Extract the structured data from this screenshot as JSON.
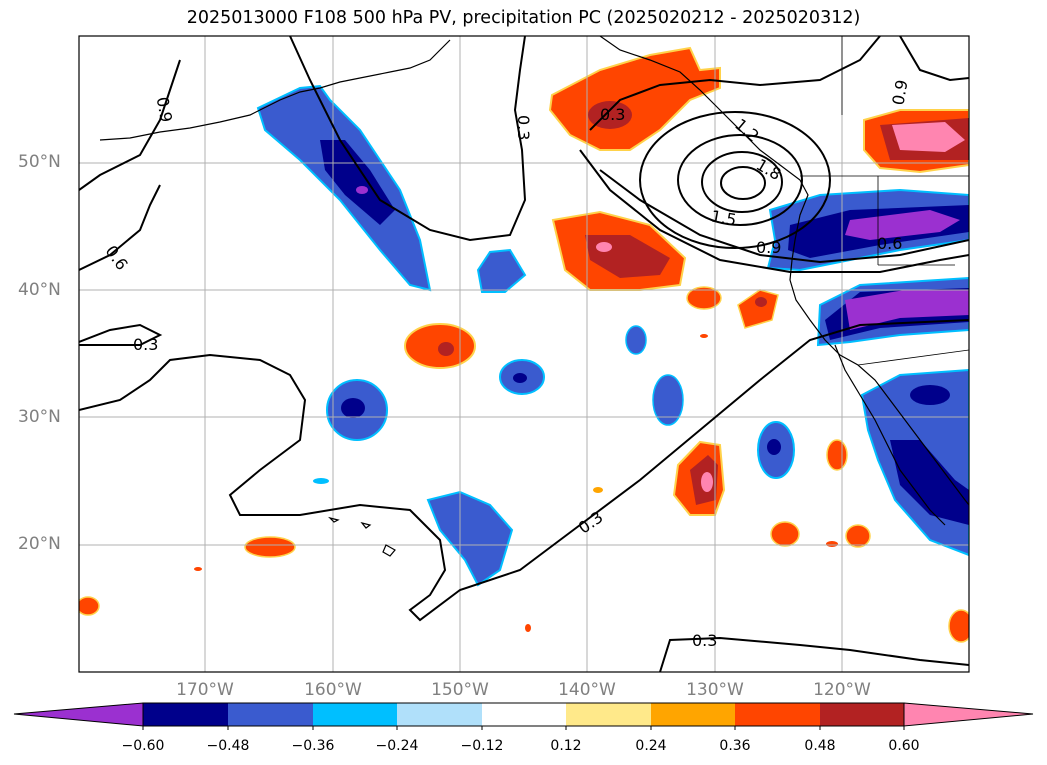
{
  "title": "2025013000 F108 500 hPa PV, precipitation PC (2025020212 - 2025020312)",
  "lat_labels": [
    "50°N",
    "40°N",
    "30°N",
    "20°N"
  ],
  "lon_labels": [
    "170°W",
    "160°W",
    "150°W",
    "140°W",
    "130°W",
    "120°W"
  ],
  "contour_labels": [
    "0.9",
    "0.3",
    "0.9",
    "0.6",
    "0.3",
    "1.2",
    "1.5",
    "1.8",
    "0.9",
    "0.6",
    "0.3",
    "0.3",
    "0.3"
  ],
  "colorbar": {
    "ticks": [
      "−0.60",
      "−0.48",
      "−0.36",
      "−0.24",
      "−0.12",
      "0.12",
      "0.24",
      "0.36",
      "0.48",
      "0.60"
    ],
    "colors": [
      "#9b30d0",
      "#00008b",
      "#3a5bcf",
      "#00bfff",
      "#b0e0fa",
      "#ffffff",
      "#ffe98a",
      "#ffa500",
      "#ff4500",
      "#b22222",
      "#ff85b0"
    ]
  }
}
